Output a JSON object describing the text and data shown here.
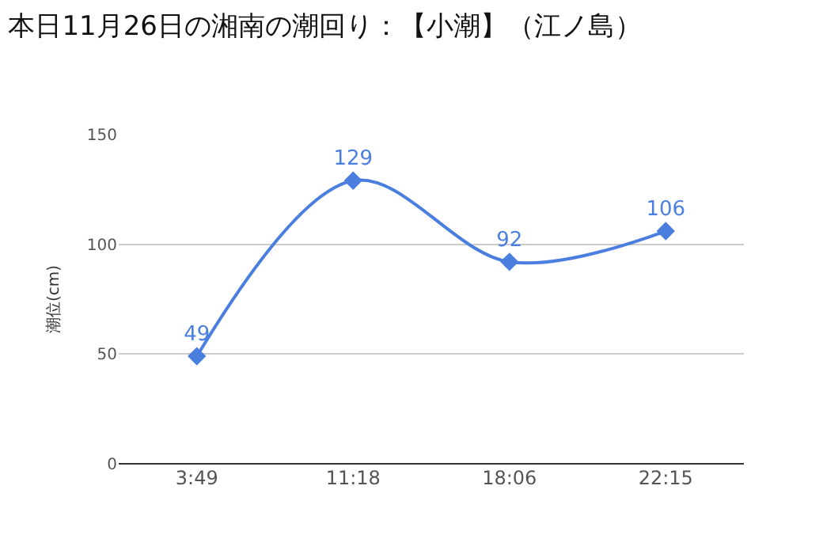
{
  "chart_data": {
    "type": "line",
    "title": "本日11月26日の湘南の潮回り：【小潮】（江ノ島）",
    "ylabel": "潮位(cm)",
    "categories": [
      "3:49",
      "11:18",
      "18:06",
      "22:15"
    ],
    "series": [
      {
        "color": "#4a7fe0",
        "values": [
          49,
          129,
          92,
          106
        ]
      }
    ],
    "ylim": [
      0,
      150
    ],
    "yticks": [
      0,
      50,
      100,
      150
    ],
    "grid": "y",
    "marker": "diamond",
    "line_style": "solid",
    "data_labels": true,
    "legend": false
  }
}
